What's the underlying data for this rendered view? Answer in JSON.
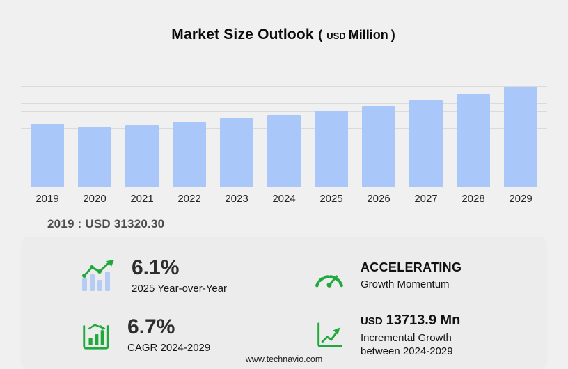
{
  "header": {
    "title": "Market Size Outlook",
    "open_paren": "(",
    "unit_currency": "USD",
    "unit_word": "Million",
    "close_paren": ")"
  },
  "chart_data": {
    "type": "bar",
    "title": "Market Size Outlook (USD Million)",
    "categories": [
      "2019",
      "2020",
      "2021",
      "2022",
      "2023",
      "2024",
      "2025",
      "2026",
      "2027",
      "2028",
      "2029"
    ],
    "values": [
      31320.3,
      29500,
      30700,
      32300,
      34000,
      35830,
      38010,
      40450,
      43200,
      46100,
      49540
    ],
    "xlabel": "",
    "ylabel": "",
    "ylim": [
      0,
      50000
    ],
    "grid": true,
    "legend": "none",
    "bar_color": "#a9c7f8"
  },
  "annotation": {
    "base_year": "2019 : USD  31320.30"
  },
  "stats": [
    {
      "icon": "bar-growth-icon",
      "value": "6.1%",
      "label": "2025 Year-over-Year"
    },
    {
      "icon": "gauge-icon",
      "value": "ACCELERATING",
      "label": "Growth Momentum"
    },
    {
      "icon": "cagr-chart-icon",
      "value": "6.7%",
      "label": "CAGR 2024-2029"
    },
    {
      "icon": "incremental-chart-icon",
      "value_prefix": "USD",
      "value": "13713.9 Mn",
      "label": "Incremental Growth between 2024-2029"
    }
  ],
  "footer": {
    "url_text": "www.technavio.com"
  },
  "colors": {
    "bar": "#a9c7f8",
    "accent_green": "#1fa83c",
    "background": "#f0f0f1",
    "panel": "#ececec"
  }
}
